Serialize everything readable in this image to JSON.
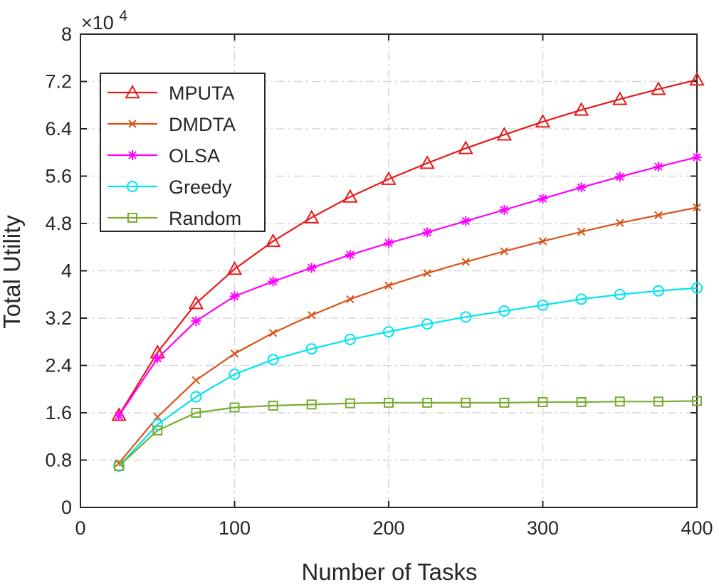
{
  "chart_data": {
    "type": "line",
    "xlabel": "Number of Tasks",
    "ylabel": "Total Utility",
    "y_exponent_base": "×10",
    "y_exponent_power": "4",
    "xlim": [
      0,
      400
    ],
    "ylim": [
      0,
      8
    ],
    "x_ticks": [
      0,
      100,
      200,
      300,
      400
    ],
    "y_ticks": [
      0,
      0.8,
      1.6,
      2.4,
      3.2,
      4,
      4.8,
      5.6,
      6.4,
      7.2,
      8
    ],
    "x_tick_labels": [
      "0",
      "100",
      "200",
      "300",
      "400"
    ],
    "y_tick_labels": [
      "0",
      "0.8",
      "1.6",
      "2.4",
      "3.2",
      "4",
      "4.8",
      "5.6",
      "6.4",
      "7.2",
      "8"
    ],
    "grid": true,
    "legend_position": "top-left",
    "x": [
      25,
      50,
      75,
      100,
      125,
      150,
      175,
      200,
      225,
      250,
      275,
      300,
      325,
      350,
      375,
      400
    ],
    "series": [
      {
        "name": "MPUTA",
        "color": "#e8191a",
        "marker": "triangle",
        "values": [
          1.56,
          2.62,
          3.45,
          4.03,
          4.5,
          4.9,
          5.25,
          5.55,
          5.82,
          6.07,
          6.3,
          6.52,
          6.72,
          6.9,
          7.07,
          7.23
        ]
      },
      {
        "name": "DMDTA",
        "color": "#d95319",
        "marker": "x",
        "values": [
          0.75,
          1.53,
          2.15,
          2.6,
          2.95,
          3.25,
          3.52,
          3.75,
          3.96,
          4.15,
          4.33,
          4.5,
          4.66,
          4.81,
          4.94,
          5.07
        ]
      },
      {
        "name": "OLSA",
        "color": "#ff00ff",
        "marker": "star",
        "values": [
          1.55,
          2.52,
          3.15,
          3.57,
          3.82,
          4.05,
          4.27,
          4.47,
          4.65,
          4.84,
          5.03,
          5.22,
          5.41,
          5.59,
          5.76,
          5.92
        ]
      },
      {
        "name": "Greedy",
        "color": "#00e5ee",
        "marker": "circle",
        "values": [
          0.7,
          1.4,
          1.87,
          2.25,
          2.5,
          2.68,
          2.84,
          2.97,
          3.1,
          3.22,
          3.32,
          3.42,
          3.52,
          3.6,
          3.66,
          3.71
        ]
      },
      {
        "name": "Random",
        "color": "#77ac30",
        "marker": "square",
        "values": [
          0.7,
          1.3,
          1.6,
          1.69,
          1.72,
          1.74,
          1.76,
          1.77,
          1.77,
          1.77,
          1.77,
          1.78,
          1.78,
          1.79,
          1.79,
          1.8
        ]
      }
    ]
  }
}
